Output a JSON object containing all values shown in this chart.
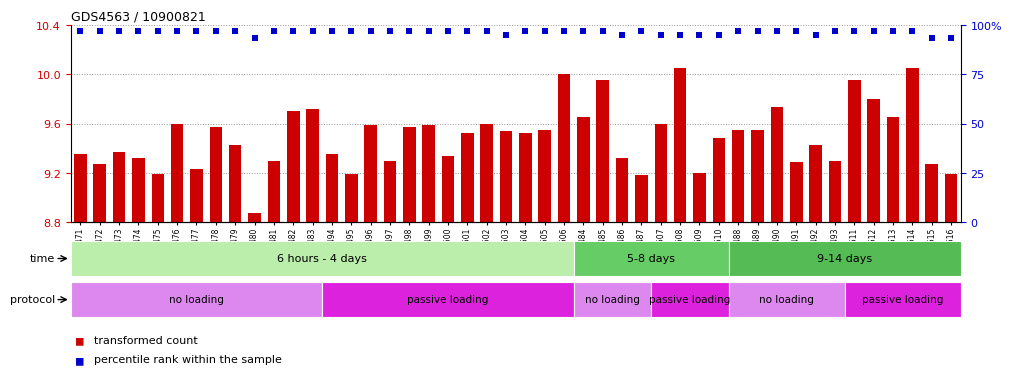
{
  "title": "GDS4563 / 10900821",
  "samples": [
    "GSM930471",
    "GSM930472",
    "GSM930473",
    "GSM930474",
    "GSM930475",
    "GSM930476",
    "GSM930477",
    "GSM930478",
    "GSM930479",
    "GSM930480",
    "GSM930481",
    "GSM930482",
    "GSM930483",
    "GSM930494",
    "GSM930495",
    "GSM930496",
    "GSM930497",
    "GSM930498",
    "GSM930499",
    "GSM930500",
    "GSM930501",
    "GSM930502",
    "GSM930503",
    "GSM930504",
    "GSM930505",
    "GSM930506",
    "GSM930484",
    "GSM930485",
    "GSM930486",
    "GSM930487",
    "GSM930507",
    "GSM930508",
    "GSM930509",
    "GSM930510",
    "GSM930488",
    "GSM930489",
    "GSM930490",
    "GSM930491",
    "GSM930492",
    "GSM930493",
    "GSM930511",
    "GSM930512",
    "GSM930513",
    "GSM930514",
    "GSM930515",
    "GSM930516"
  ],
  "bar_values": [
    9.35,
    9.27,
    9.37,
    9.32,
    9.19,
    9.6,
    9.23,
    9.57,
    9.43,
    8.88,
    9.3,
    9.7,
    9.72,
    9.35,
    9.19,
    9.59,
    9.3,
    9.57,
    9.59,
    9.34,
    9.52,
    9.6,
    9.54,
    9.52,
    9.55,
    10.0,
    9.65,
    9.95,
    9.32,
    9.18,
    9.6,
    10.05,
    9.2,
    9.48,
    9.55,
    9.55,
    9.73,
    9.29,
    9.43,
    9.3,
    9.95,
    9.8,
    9.65,
    10.05,
    9.27,
    9.19
  ],
  "percentile_values": [
    97,
    97,
    97,
    97,
    97,
    97,
    97,
    97,
    97,
    93,
    97,
    97,
    97,
    97,
    97,
    97,
    97,
    97,
    97,
    97,
    97,
    97,
    95,
    97,
    97,
    97,
    97,
    97,
    95,
    97,
    95,
    95,
    95,
    95,
    97,
    97,
    97,
    97,
    95,
    97,
    97,
    97,
    97,
    97,
    93,
    93
  ],
  "ylim_left": [
    8.8,
    10.4
  ],
  "ylim_right": [
    0,
    100
  ],
  "yticks_left": [
    8.8,
    9.2,
    9.6,
    10.0,
    10.4
  ],
  "yticks_right": [
    0,
    25,
    50,
    75,
    100
  ],
  "bar_color": "#cc0000",
  "dot_color": "#0000cc",
  "grid_color": "#999999",
  "time_groups": [
    {
      "label": "6 hours - 4 days",
      "start": 0,
      "end": 25,
      "color": "#bbeeaa"
    },
    {
      "label": "5-8 days",
      "start": 26,
      "end": 33,
      "color": "#66cc66"
    },
    {
      "label": "9-14 days",
      "start": 34,
      "end": 45,
      "color": "#55bb55"
    }
  ],
  "protocol_groups": [
    {
      "label": "no loading",
      "start": 0,
      "end": 12,
      "color": "#dd88ee"
    },
    {
      "label": "passive loading",
      "start": 13,
      "end": 25,
      "color": "#dd22dd"
    },
    {
      "label": "no loading",
      "start": 26,
      "end": 29,
      "color": "#dd88ee"
    },
    {
      "label": "passive loading",
      "start": 30,
      "end": 33,
      "color": "#dd22dd"
    },
    {
      "label": "no loading",
      "start": 34,
      "end": 39,
      "color": "#dd88ee"
    },
    {
      "label": "passive loading",
      "start": 40,
      "end": 45,
      "color": "#dd22dd"
    }
  ],
  "legend_labels": [
    "transformed count",
    "percentile rank within the sample"
  ],
  "legend_colors": [
    "#cc0000",
    "#0000cc"
  ]
}
